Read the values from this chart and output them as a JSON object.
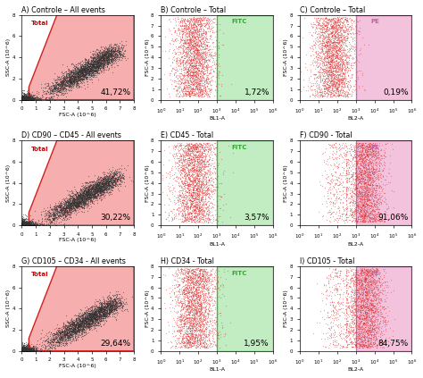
{
  "titles": [
    "A) Controle – All events",
    "B) Controle – Total",
    "C) Controle – Total",
    "D) CD90 – CD45 - All events",
    "E) CD45 - Total",
    "F) CD90 - Total",
    "G) CD105 – CD34 - All events",
    "H) CD34 - Total",
    "I) CD105 - Total"
  ],
  "percentages": [
    "41,72%",
    "1,72%",
    "0,19%",
    "30,22%",
    "3,57%",
    "91,06%",
    "29,64%",
    "1,95%",
    "84,75%"
  ],
  "fitc_label": "FITC",
  "pe_label": "PE",
  "total_label": "Total",
  "red_fill": "#f5a0a0",
  "red_border": "#cc0000",
  "green_fill": "#b8eab8",
  "green_border": "#2da82d",
  "pink_fill": "#f2b8d8",
  "pink_border": "#cc55aa",
  "scatter_color_col0": "#333333",
  "scatter_color_col12": "#dd3333",
  "scatter_alpha_col0": 0.55,
  "scatter_alpha_col12": 0.45,
  "scatter_size_col0": 0.8,
  "scatter_size_col12": 0.8,
  "background": "#ffffff",
  "col1_xlabel": "FSC-A (10^6)",
  "col1_ylabel": "SSC-A (10^6)",
  "col2_xlabel": "BL1-A",
  "col3_xlabel": "BL2-A",
  "col23_ylabel": "FSC-A (10^6)",
  "n_points_col0": 4000,
  "n_points_col12": 2500,
  "title_fontsize": 5.8,
  "pct_fontsize": 6.5,
  "tick_fontsize": 4.0,
  "label_fontsize": 4.5,
  "gate_label_fontsize": 5.0
}
